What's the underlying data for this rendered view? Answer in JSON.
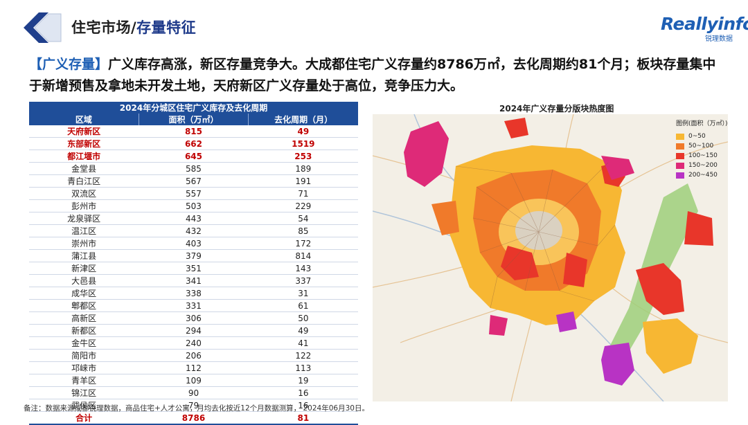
{
  "header": {
    "title_prefix": "住宅市场/",
    "title_accent": "存量特征"
  },
  "brand": {
    "name": "Reallyinfo",
    "sub": "锐理数据"
  },
  "headline": {
    "tag": "【广义存量】",
    "text": "广义库存高涨，新区存量竞争大。大成都住宅广义存量约8786万㎡，去化周期约81个月；板块存量集中于新增预售及拿地未开发土地，天府新区广义存量处于高位，竞争压力大。"
  },
  "table": {
    "caption": "2024年分城区住宅广义库存及去化周期",
    "columns": [
      "区域",
      "面积（万㎡）",
      "去化周期（月）"
    ],
    "rows": [
      {
        "region": "天府新区",
        "area": "815",
        "cycle": "49",
        "highlight": true
      },
      {
        "region": "东部新区",
        "area": "662",
        "cycle": "1519",
        "highlight": true
      },
      {
        "region": "都江堰市",
        "area": "645",
        "cycle": "253",
        "highlight": true
      },
      {
        "region": "金堂县",
        "area": "585",
        "cycle": "189"
      },
      {
        "region": "青白江区",
        "area": "567",
        "cycle": "191"
      },
      {
        "region": "双流区",
        "area": "557",
        "cycle": "71"
      },
      {
        "region": "彭州市",
        "area": "503",
        "cycle": "229"
      },
      {
        "region": "龙泉驿区",
        "area": "443",
        "cycle": "54"
      },
      {
        "region": "温江区",
        "area": "432",
        "cycle": "85"
      },
      {
        "region": "崇州市",
        "area": "403",
        "cycle": "172"
      },
      {
        "region": "蒲江县",
        "area": "379",
        "cycle": "814"
      },
      {
        "region": "新津区",
        "area": "351",
        "cycle": "143"
      },
      {
        "region": "大邑县",
        "area": "341",
        "cycle": "337"
      },
      {
        "region": "成华区",
        "area": "338",
        "cycle": "31"
      },
      {
        "region": "郫都区",
        "area": "331",
        "cycle": "61"
      },
      {
        "region": "高新区",
        "area": "306",
        "cycle": "50"
      },
      {
        "region": "新都区",
        "area": "294",
        "cycle": "49"
      },
      {
        "region": "金牛区",
        "area": "240",
        "cycle": "41"
      },
      {
        "region": "简阳市",
        "area": "206",
        "cycle": "122"
      },
      {
        "region": "邛崃市",
        "area": "112",
        "cycle": "113"
      },
      {
        "region": "青羊区",
        "area": "109",
        "cycle": "19"
      },
      {
        "region": "锦江区",
        "area": "90",
        "cycle": "16"
      },
      {
        "region": "武侯区",
        "area": "79",
        "cycle": "16"
      }
    ],
    "total": {
      "region": "合计",
      "area": "8786",
      "cycle": "81"
    }
  },
  "map": {
    "title": "2024年广义存量分版块热度图",
    "legend_title": "图例(面积（万㎡）)",
    "legend": [
      {
        "label": "0~50",
        "color": "#f7b733"
      },
      {
        "label": "50~100",
        "color": "#f07a2a"
      },
      {
        "label": "100~150",
        "color": "#e8362a"
      },
      {
        "label": "150~200",
        "color": "#de2a78"
      },
      {
        "label": "200~450",
        "color": "#b833c4"
      }
    ]
  },
  "footnote": "备注：数据来源成都锐理数据，商品住宅+人才公寓，月均去化按近12个月数据测算， 2024年06月30日。"
}
